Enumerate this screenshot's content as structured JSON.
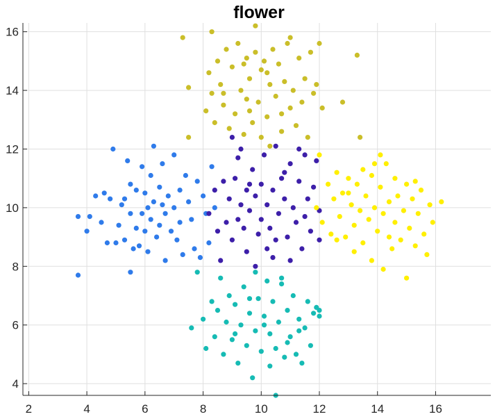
{
  "chart_data": {
    "type": "scatter",
    "title": "flower",
    "xlabel": "",
    "ylabel": "",
    "xlim": [
      1.8,
      17.9
    ],
    "ylim": [
      3.6,
      16.3
    ],
    "xticks": [
      2,
      4,
      6,
      8,
      10,
      12,
      14,
      16
    ],
    "yticks": [
      4,
      6,
      8,
      10,
      12,
      14,
      16
    ],
    "grid": true,
    "series": [
      {
        "color": "#2f7bea",
        "points": [
          [
            3.7,
            9.7
          ],
          [
            3.7,
            7.7
          ],
          [
            4.0,
            9.2
          ],
          [
            4.1,
            9.7
          ],
          [
            4.3,
            10.4
          ],
          [
            4.5,
            9.5
          ],
          [
            4.6,
            10.5
          ],
          [
            4.7,
            8.8
          ],
          [
            4.8,
            10.3
          ],
          [
            4.9,
            12.0
          ],
          [
            5.0,
            8.8
          ],
          [
            5.1,
            9.4
          ],
          [
            5.2,
            10.1
          ],
          [
            5.3,
            8.9
          ],
          [
            5.3,
            10.3
          ],
          [
            5.4,
            11.6
          ],
          [
            5.5,
            7.8
          ],
          [
            5.5,
            9.8
          ],
          [
            5.5,
            10.8
          ],
          [
            5.6,
            8.6
          ],
          [
            5.7,
            9.3
          ],
          [
            5.7,
            10.6
          ],
          [
            5.8,
            8.7
          ],
          [
            5.9,
            9.8
          ],
          [
            5.9,
            11.4
          ],
          [
            6.0,
            10.5
          ],
          [
            6.0,
            9.2
          ],
          [
            6.1,
            8.5
          ],
          [
            6.1,
            10.0
          ],
          [
            6.2,
            9.6
          ],
          [
            6.2,
            11.1
          ],
          [
            6.3,
            10.2
          ],
          [
            6.3,
            12.1
          ],
          [
            6.4,
            9.0
          ],
          [
            6.5,
            10.7
          ],
          [
            6.5,
            9.4
          ],
          [
            6.6,
            11.5
          ],
          [
            6.6,
            10.1
          ],
          [
            6.7,
            8.2
          ],
          [
            6.7,
            9.8
          ],
          [
            6.8,
            10.4
          ],
          [
            6.9,
            9.2
          ],
          [
            7.0,
            10.0
          ],
          [
            7.0,
            11.8
          ],
          [
            7.1,
            8.9
          ],
          [
            7.2,
            10.6
          ],
          [
            7.2,
            9.5
          ],
          [
            7.3,
            8.4
          ],
          [
            7.4,
            11.1
          ],
          [
            7.5,
            10.2
          ],
          [
            7.6,
            9.6
          ],
          [
            7.7,
            8.6
          ],
          [
            7.8,
            10.9
          ],
          [
            7.9,
            8.3
          ],
          [
            8.0,
            10.4
          ],
          [
            8.1,
            9.8
          ],
          [
            8.2,
            8.8
          ],
          [
            8.3,
            11.4
          ],
          [
            8.4,
            10.0
          ]
        ]
      },
      {
        "color": "#3d1fa9",
        "points": [
          [
            8.2,
            9.8
          ],
          [
            8.4,
            10.6
          ],
          [
            8.5,
            9.2
          ],
          [
            8.6,
            8.2
          ],
          [
            8.7,
            10.9
          ],
          [
            8.8,
            9.5
          ],
          [
            8.9,
            10.3
          ],
          [
            9.0,
            12.4
          ],
          [
            9.0,
            8.9
          ],
          [
            9.1,
            11.0
          ],
          [
            9.2,
            9.6
          ],
          [
            9.3,
            10.1
          ],
          [
            9.3,
            12.0
          ],
          [
            9.4,
            9.3
          ],
          [
            9.5,
            10.6
          ],
          [
            9.5,
            8.5
          ],
          [
            9.6,
            9.9
          ],
          [
            9.7,
            11.3
          ],
          [
            9.8,
            10.4
          ],
          [
            9.8,
            8.0
          ],
          [
            9.9,
            9.1
          ],
          [
            10.0,
            10.8
          ],
          [
            10.0,
            9.6
          ],
          [
            10.1,
            11.8
          ],
          [
            10.2,
            10.1
          ],
          [
            10.2,
            8.6
          ],
          [
            10.3,
            9.3
          ],
          [
            10.4,
            10.6
          ],
          [
            10.5,
            12.1
          ],
          [
            10.5,
            8.9
          ],
          [
            10.6,
            9.8
          ],
          [
            10.7,
            11.0
          ],
          [
            10.8,
            10.3
          ],
          [
            10.9,
            9.0
          ],
          [
            11.0,
            11.5
          ],
          [
            11.0,
            8.2
          ],
          [
            11.1,
            10.0
          ],
          [
            11.2,
            9.5
          ],
          [
            11.3,
            10.9
          ],
          [
            11.4,
            8.6
          ],
          [
            11.5,
            11.8
          ],
          [
            11.5,
            9.7
          ],
          [
            11.6,
            10.3
          ],
          [
            11.7,
            9.2
          ],
          [
            11.8,
            10.7
          ],
          [
            11.9,
            11.6
          ],
          [
            12.0,
            9.9
          ],
          [
            12.0,
            8.9
          ],
          [
            11.3,
            12.0
          ],
          [
            10.8,
            11.2
          ],
          [
            9.6,
            10.8
          ],
          [
            10.4,
            8.3
          ],
          [
            9.2,
            11.7
          ]
        ]
      },
      {
        "color": "#cabe29",
        "points": [
          [
            7.3,
            15.8
          ],
          [
            7.5,
            14.1
          ],
          [
            7.5,
            12.4
          ],
          [
            8.3,
            16.0
          ],
          [
            8.1,
            13.3
          ],
          [
            8.2,
            14.6
          ],
          [
            8.3,
            13.9
          ],
          [
            8.4,
            12.9
          ],
          [
            8.5,
            15.0
          ],
          [
            8.6,
            14.2
          ],
          [
            8.7,
            13.5
          ],
          [
            8.8,
            15.4
          ],
          [
            8.9,
            12.7
          ],
          [
            9.0,
            14.8
          ],
          [
            9.1,
            13.2
          ],
          [
            9.2,
            15.6
          ],
          [
            9.3,
            14.0
          ],
          [
            9.4,
            12.5
          ],
          [
            9.5,
            15.1
          ],
          [
            9.5,
            13.7
          ],
          [
            9.6,
            14.4
          ],
          [
            9.7,
            12.9
          ],
          [
            9.8,
            16.2
          ],
          [
            9.8,
            15.3
          ],
          [
            9.9,
            13.6
          ],
          [
            10.0,
            14.7
          ],
          [
            10.0,
            12.4
          ],
          [
            10.1,
            15.0
          ],
          [
            10.2,
            13.1
          ],
          [
            10.3,
            14.2
          ],
          [
            10.3,
            12.1
          ],
          [
            10.4,
            15.4
          ],
          [
            10.5,
            13.8
          ],
          [
            10.6,
            14.9
          ],
          [
            10.7,
            12.6
          ],
          [
            10.8,
            14.3
          ],
          [
            10.9,
            15.6
          ],
          [
            11.0,
            13.4
          ],
          [
            11.1,
            14.0
          ],
          [
            11.2,
            12.8
          ],
          [
            11.3,
            15.1
          ],
          [
            11.4,
            13.6
          ],
          [
            11.5,
            14.4
          ],
          [
            11.6,
            12.4
          ],
          [
            11.7,
            15.3
          ],
          [
            11.8,
            13.9
          ],
          [
            12.0,
            15.6
          ],
          [
            12.1,
            13.4
          ],
          [
            12.8,
            13.6
          ],
          [
            13.3,
            15.2
          ],
          [
            13.4,
            12.4
          ],
          [
            10.2,
            14.6
          ],
          [
            9.4,
            14.9
          ],
          [
            10.7,
            13.2
          ],
          [
            11.0,
            15.8
          ],
          [
            9.6,
            13.3
          ],
          [
            8.7,
            13.9
          ],
          [
            11.9,
            14.2
          ]
        ]
      },
      {
        "color": "#ffef00",
        "points": [
          [
            11.9,
            10.0
          ],
          [
            12.0,
            11.8
          ],
          [
            12.1,
            9.5
          ],
          [
            12.3,
            10.8
          ],
          [
            12.4,
            9.1
          ],
          [
            12.5,
            10.3
          ],
          [
            12.6,
            11.2
          ],
          [
            12.7,
            9.7
          ],
          [
            12.8,
            10.5
          ],
          [
            12.9,
            9.0
          ],
          [
            13.0,
            11.0
          ],
          [
            13.1,
            10.1
          ],
          [
            13.2,
            8.5
          ],
          [
            13.2,
            9.4
          ],
          [
            13.3,
            10.8
          ],
          [
            13.4,
            9.9
          ],
          [
            13.5,
            11.3
          ],
          [
            13.5,
            8.8
          ],
          [
            13.6,
            10.4
          ],
          [
            13.7,
            9.6
          ],
          [
            13.8,
            11.1
          ],
          [
            13.8,
            8.2
          ],
          [
            13.9,
            10.0
          ],
          [
            14.0,
            9.2
          ],
          [
            14.1,
            10.7
          ],
          [
            14.2,
            7.9
          ],
          [
            14.2,
            9.8
          ],
          [
            14.3,
            11.5
          ],
          [
            14.4,
            10.2
          ],
          [
            14.5,
            8.6
          ],
          [
            14.6,
            9.5
          ],
          [
            14.6,
            11.0
          ],
          [
            14.7,
            10.4
          ],
          [
            14.8,
            8.9
          ],
          [
            14.9,
            9.9
          ],
          [
            15.0,
            10.8
          ],
          [
            15.0,
            7.6
          ],
          [
            15.1,
            9.3
          ],
          [
            15.2,
            10.3
          ],
          [
            15.3,
            8.7
          ],
          [
            15.4,
            9.8
          ],
          [
            15.5,
            10.6
          ],
          [
            15.6,
            9.1
          ],
          [
            15.7,
            8.4
          ],
          [
            15.8,
            10.1
          ],
          [
            15.9,
            9.5
          ],
          [
            16.2,
            10.2
          ],
          [
            14.1,
            11.8
          ],
          [
            13.0,
            10.5
          ],
          [
            12.6,
            8.9
          ],
          [
            13.9,
            11.5
          ],
          [
            15.3,
            10.9
          ],
          [
            14.4,
            9.0
          ]
        ]
      },
      {
        "color": "#16bbb4",
        "points": [
          [
            7.6,
            5.9
          ],
          [
            7.8,
            7.8
          ],
          [
            8.0,
            6.2
          ],
          [
            8.1,
            5.2
          ],
          [
            8.3,
            6.8
          ],
          [
            8.4,
            5.6
          ],
          [
            8.5,
            6.5
          ],
          [
            8.6,
            7.6
          ],
          [
            8.7,
            5.0
          ],
          [
            8.8,
            6.1
          ],
          [
            8.9,
            7.0
          ],
          [
            9.0,
            5.5
          ],
          [
            9.1,
            6.7
          ],
          [
            9.2,
            4.7
          ],
          [
            9.3,
            6.0
          ],
          [
            9.4,
            7.3
          ],
          [
            9.5,
            5.3
          ],
          [
            9.6,
            6.4
          ],
          [
            9.7,
            4.2
          ],
          [
            9.8,
            7.8
          ],
          [
            9.8,
            5.8
          ],
          [
            9.9,
            6.9
          ],
          [
            10.0,
            5.1
          ],
          [
            10.1,
            6.3
          ],
          [
            10.2,
            7.5
          ],
          [
            10.3,
            4.6
          ],
          [
            10.3,
            5.7
          ],
          [
            10.4,
            6.8
          ],
          [
            10.5,
            3.6
          ],
          [
            10.5,
            5.2
          ],
          [
            10.6,
            6.1
          ],
          [
            10.7,
            7.4
          ],
          [
            10.8,
            4.9
          ],
          [
            10.9,
            6.5
          ],
          [
            11.0,
            5.6
          ],
          [
            11.1,
            7.0
          ],
          [
            11.2,
            5.0
          ],
          [
            11.3,
            6.2
          ],
          [
            11.4,
            4.7
          ],
          [
            11.5,
            5.9
          ],
          [
            11.6,
            6.8
          ],
          [
            11.7,
            5.3
          ],
          [
            11.8,
            6.4
          ],
          [
            11.9,
            6.6
          ],
          [
            12.0,
            6.3
          ],
          [
            12.0,
            6.5
          ],
          [
            10.7,
            7.6
          ],
          [
            9.1,
            5.7
          ],
          [
            10.1,
            6.0
          ],
          [
            10.9,
            5.4
          ],
          [
            9.6,
            6.9
          ],
          [
            11.3,
            5.8
          ]
        ]
      }
    ]
  }
}
